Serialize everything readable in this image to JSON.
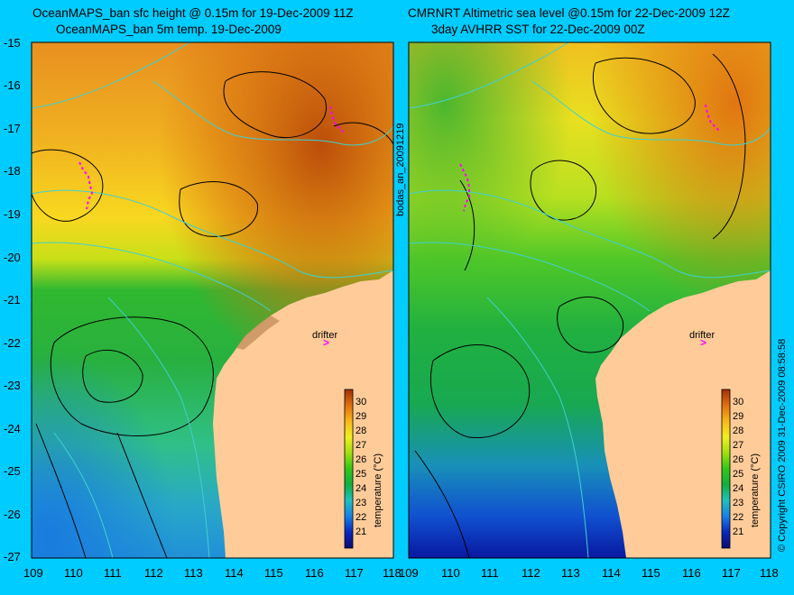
{
  "chart_data": [
    {
      "type": "heatmap",
      "title_line1": "OceanMAPS_ban sfc height @ 0.15m for 19-Dec-2009 11Z",
      "title_line2": "OceanMAPS_ban 5m temp. 19-Dec-2009",
      "x_ticks": [
        "109",
        "110",
        "111",
        "112",
        "113",
        "114",
        "115",
        "116",
        "117",
        "118"
      ],
      "y_ticks": [
        "-15",
        "-16",
        "-17",
        "-18",
        "-19",
        "-20",
        "-21",
        "-22",
        "-23",
        "-24",
        "-25",
        "-26",
        "-27"
      ],
      "xlim": [
        109,
        118
      ],
      "ylim": [
        -27,
        -15
      ],
      "colorbar_label": "temperature (°C)",
      "colorbar_ticks": [
        "30",
        "29",
        "28",
        "27",
        "26",
        "25",
        "24",
        "23",
        "22",
        "21"
      ],
      "colorbar_range": [
        20,
        31
      ],
      "annotation": "drifter",
      "drifter_marker": ">",
      "grid": false
    },
    {
      "type": "heatmap",
      "title_line1": "CMRNRT Altimetric sea level  @0.15m  for 22-Dec-2009 12Z",
      "title_line2": "3day AVHRR SST for 22-Dec-2009 00Z",
      "x_ticks": [
        "109",
        "110",
        "111",
        "112",
        "113",
        "114",
        "115",
        "116",
        "117",
        "118"
      ],
      "xlim": [
        109,
        118
      ],
      "ylim": [
        -27,
        -15
      ],
      "colorbar_label": "temperature (°C)",
      "colorbar_ticks": [
        "30",
        "29",
        "28",
        "27",
        "26",
        "25",
        "24",
        "23",
        "22",
        "21"
      ],
      "colorbar_range": [
        20,
        31
      ],
      "annotation": "drifter",
      "drifter_marker": ">",
      "grid": false
    }
  ],
  "side_label": "bodas_an_20091219",
  "copyright": "© Copyright CSIRO 2009   31-Dec-2009 08:58:58",
  "colors": {
    "background": "#00ccff",
    "land": "#ffcc99",
    "contour_ssh": "#000000",
    "contour_bathy": "#40d0d0",
    "drifter": "#ff00ff"
  }
}
